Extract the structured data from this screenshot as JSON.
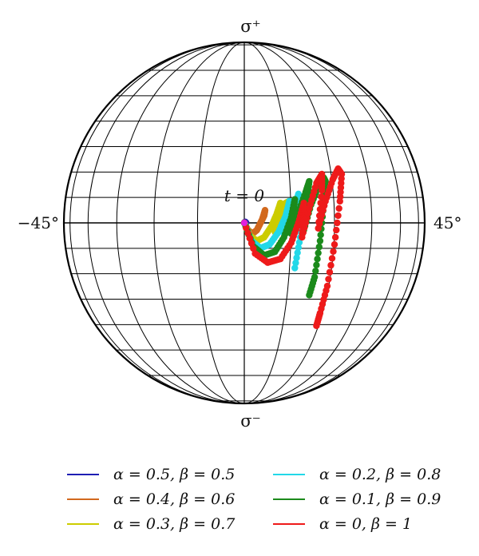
{
  "chart_data": {
    "type": "scatter",
    "projection": "Bloch sphere (Poincaré sphere) trajectories",
    "pole_top_label": "σ⁺",
    "pole_bottom_label": "σ⁻",
    "left_label": "−45°",
    "right_label": "45°",
    "start_annotation": "t = 0",
    "grid": true,
    "legend_position": "bottom",
    "series": [
      {
        "name": "α = 0.5, β = 0.5",
        "color": "#1f1fb4",
        "x": [
          0.0,
          0.005,
          0.01
        ],
        "y": [
          0.0,
          0.005,
          0.0
        ]
      },
      {
        "name": "α = 0.4, β = 0.6",
        "color": "#d2691e",
        "x": [
          0.0,
          0.02,
          0.045,
          0.07,
          0.09,
          0.11,
          0.115,
          0.1
        ],
        "y": [
          0.0,
          -0.04,
          -0.06,
          -0.04,
          0.0,
          0.04,
          0.07,
          0.02
        ]
      },
      {
        "name": "α = 0.3, β = 0.7",
        "color": "#cccc00",
        "x": [
          0.0,
          0.03,
          0.07,
          0.11,
          0.15,
          0.18,
          0.2,
          0.19,
          0.17,
          0.2,
          0.23,
          0.25
        ],
        "y": [
          0.0,
          -0.07,
          -0.1,
          -0.08,
          -0.02,
          0.05,
          0.11,
          0.05,
          -0.05,
          0.04,
          0.11,
          0.12
        ]
      },
      {
        "name": "α = 0.2, β = 0.8",
        "color": "#22d8e8",
        "x": [
          0.0,
          0.04,
          0.09,
          0.14,
          0.19,
          0.23,
          0.25,
          0.24,
          0.22,
          0.26,
          0.29,
          0.3,
          0.29,
          0.27,
          0.3,
          0.33,
          0.35,
          0.34,
          0.31,
          0.28
        ],
        "y": [
          0.0,
          -0.1,
          -0.14,
          -0.12,
          -0.05,
          0.04,
          0.12,
          0.05,
          -0.06,
          0.03,
          0.12,
          0.16,
          0.08,
          -0.06,
          0.05,
          0.14,
          0.18,
          0.1,
          -0.08,
          -0.25
        ]
      },
      {
        "name": "α = 0.1, β = 0.9",
        "color": "#1b8a1b",
        "x": [
          0.0,
          0.05,
          0.11,
          0.17,
          0.22,
          0.26,
          0.28,
          0.27,
          0.26,
          0.3,
          0.34,
          0.36,
          0.35,
          0.33,
          0.37,
          0.41,
          0.44,
          0.45,
          0.44,
          0.42,
          0.39,
          0.36
        ],
        "y": [
          0.0,
          -0.13,
          -0.18,
          -0.16,
          -0.08,
          0.03,
          0.13,
          0.05,
          -0.06,
          0.06,
          0.17,
          0.23,
          0.14,
          -0.04,
          0.1,
          0.2,
          0.25,
          0.23,
          0.1,
          -0.1,
          -0.3,
          -0.4
        ]
      },
      {
        "name": "α = 0, β = 1",
        "color": "#ee1a1a",
        "x": [
          0.0,
          0.06,
          0.13,
          0.2,
          0.26,
          0.3,
          0.33,
          0.33,
          0.32,
          0.36,
          0.4,
          0.43,
          0.43,
          0.41,
          0.45,
          0.49,
          0.52,
          0.54,
          0.53,
          0.5,
          0.46,
          0.42,
          0.4
        ],
        "y": [
          0.0,
          -0.17,
          -0.22,
          -0.2,
          -0.11,
          0.0,
          0.11,
          0.03,
          -0.08,
          0.08,
          0.22,
          0.27,
          0.18,
          -0.03,
          0.12,
          0.24,
          0.3,
          0.27,
          0.12,
          -0.12,
          -0.35,
          -0.5,
          -0.57
        ]
      }
    ],
    "start_marker_color": "#e020e0"
  }
}
